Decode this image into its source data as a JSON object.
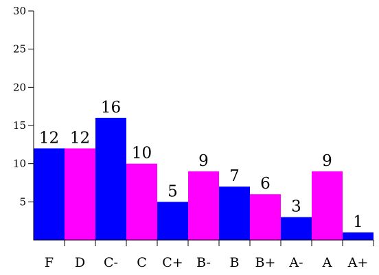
{
  "chart_data": {
    "type": "bar",
    "categories": [
      "F",
      "D",
      "C-",
      "C",
      "C+",
      "B-",
      "B",
      "B+",
      "A-",
      "A",
      "A+"
    ],
    "values": [
      12,
      12,
      16,
      10,
      5,
      9,
      7,
      6,
      3,
      9,
      1
    ],
    "bar_colors": [
      "#0000ff",
      "#ff00ff",
      "#0000ff",
      "#ff00ff",
      "#0000ff",
      "#ff00ff",
      "#0000ff",
      "#ff00ff",
      "#0000ff",
      "#ff00ff",
      "#0000ff"
    ],
    "ylim": [
      0,
      30
    ],
    "yticks": [
      5,
      10,
      15,
      20,
      25,
      30
    ],
    "data_labels": true,
    "grid": false,
    "title": "",
    "xlabel": "",
    "ylabel": ""
  }
}
